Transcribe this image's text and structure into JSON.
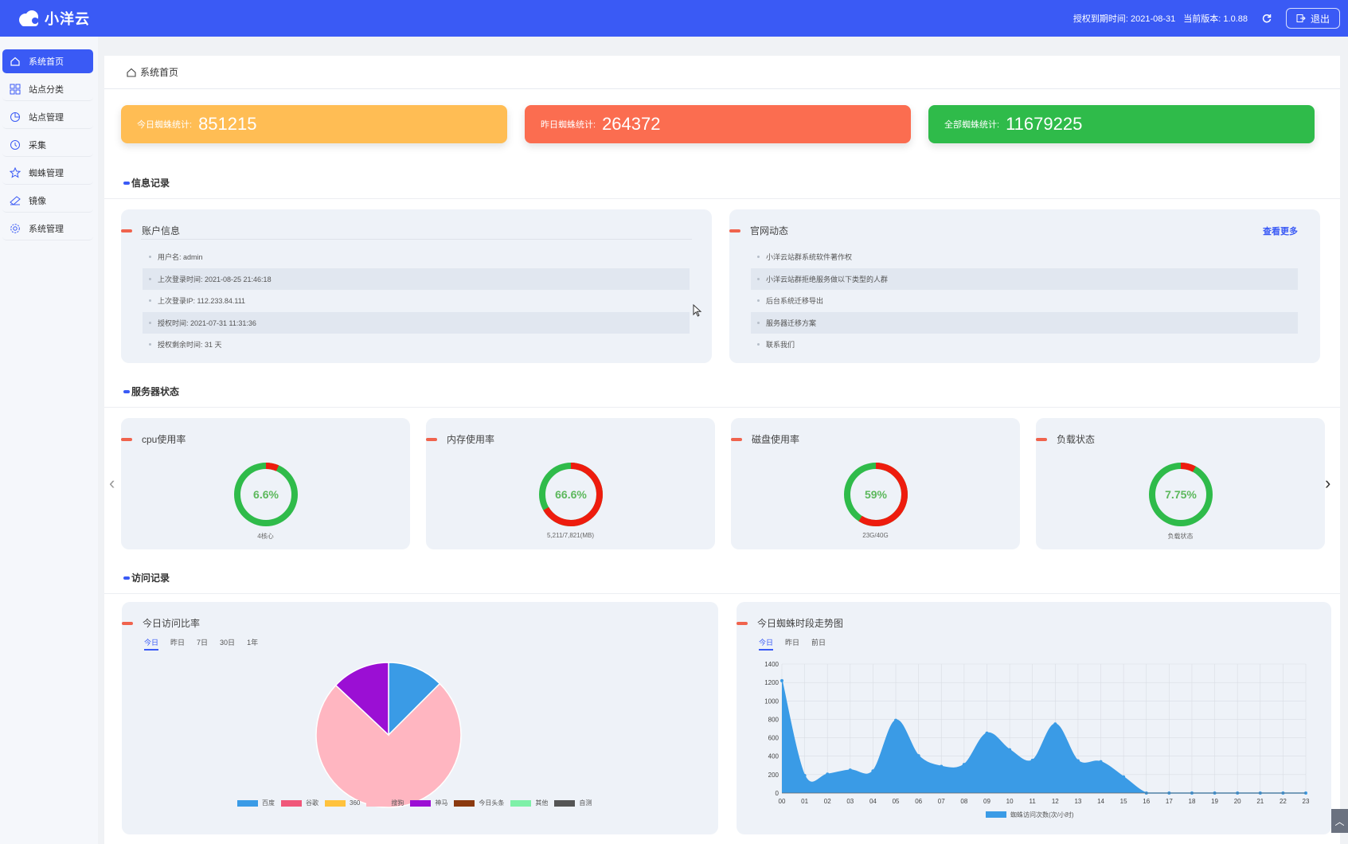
{
  "app": {
    "brand": "小洋云"
  },
  "header": {
    "auth_expire": "授权到期时间: 2021-08-31",
    "version": "当前版本: 1.0.88",
    "logout": "退出"
  },
  "sidebar": {
    "items": [
      {
        "label": "系统首页",
        "icon": "home-icon",
        "active": true
      },
      {
        "label": "站点分类",
        "icon": "grid-icon"
      },
      {
        "label": "站点管理",
        "icon": "pie-icon"
      },
      {
        "label": "采集",
        "icon": "clock-icon"
      },
      {
        "label": "蜘蛛管理",
        "icon": "star-icon"
      },
      {
        "label": "镜像",
        "icon": "layers-icon"
      },
      {
        "label": "系统管理",
        "icon": "gear-icon"
      }
    ]
  },
  "page": {
    "title": "系统首页"
  },
  "stats": [
    {
      "label": "今日蜘蛛统计:",
      "value": "851215",
      "color": "#ffbd54"
    },
    {
      "label": "昨日蜘蛛统计:",
      "value": "264372",
      "color": "#fb6d50"
    },
    {
      "label": "全部蜘蛛统计:",
      "value": "11679225",
      "color": "#2fbb4a"
    }
  ],
  "sections": {
    "info": "信息记录",
    "server": "服务器状态",
    "visits": "访问记录"
  },
  "account": {
    "title": "账户信息",
    "rows": [
      "用户名: admin",
      "上次登录时间: 2021-08-25 21:46:18",
      "上次登录IP: 112.233.84.111",
      "授权时间: 2021-07-31 11:31:36",
      "授权剩余时间: 31 天"
    ]
  },
  "news": {
    "title": "官网动态",
    "more": "查看更多",
    "rows": [
      "小洋云站群系统软件著作权",
      "小洋云站群拒绝服务做以下类型的人群",
      "后台系统迁移导出",
      "服务器迁移方案",
      "联系我们"
    ]
  },
  "gauges": [
    {
      "title": "cpu使用率",
      "value": "6.6%",
      "pct": 6.6,
      "sub": "4核心"
    },
    {
      "title": "内存使用率",
      "value": "66.6%",
      "pct": 66.6,
      "sub": "5,211/7,821(MB)"
    },
    {
      "title": "磁盘使用率",
      "value": "59%",
      "pct": 59,
      "sub": "23G/40G"
    },
    {
      "title": "负载状态",
      "value": "7.75%",
      "pct": 7.75,
      "sub": "负载状态"
    }
  ],
  "pie_panel": {
    "title": "今日访问比率",
    "tabs": [
      "今日",
      "昨日",
      "7日",
      "30日",
      "1年"
    ]
  },
  "line_panel": {
    "title": "今日蜘蛛时段走势图",
    "tabs": [
      "今日",
      "昨日",
      "前日"
    ]
  },
  "chart_data": [
    {
      "type": "pie",
      "categories": [
        "百度",
        "谷歌",
        "360",
        "搜狗",
        "神马",
        "今日头条",
        "其他",
        "自测"
      ],
      "values": [
        12.5,
        0,
        0,
        74.5,
        13,
        0,
        0,
        0
      ],
      "colors": [
        "#3a9be6",
        "#f0577a",
        "#ffc23d",
        "#ffb6c1",
        "#9b0fd4",
        "#8b3a0f",
        "#7ef0a8",
        "#555555"
      ]
    },
    {
      "type": "area",
      "x": [
        "00",
        "01",
        "02",
        "03",
        "04",
        "05",
        "06",
        "07",
        "08",
        "09",
        "10",
        "11",
        "12",
        "13",
        "14",
        "15",
        "16",
        "17",
        "18",
        "19",
        "20",
        "21",
        "22",
        "23"
      ],
      "values": [
        1220,
        190,
        205,
        250,
        240,
        790,
        405,
        290,
        310,
        650,
        470,
        355,
        750,
        350,
        340,
        175,
        0,
        0,
        0,
        0,
        0,
        0,
        0,
        0
      ],
      "ylim": [
        0,
        1400
      ],
      "yticks": [
        0,
        200,
        400,
        600,
        800,
        1000,
        1200,
        1400
      ],
      "legend": "蜘蛛访问次数(次/小时)",
      "color": "#3a9be6"
    }
  ]
}
